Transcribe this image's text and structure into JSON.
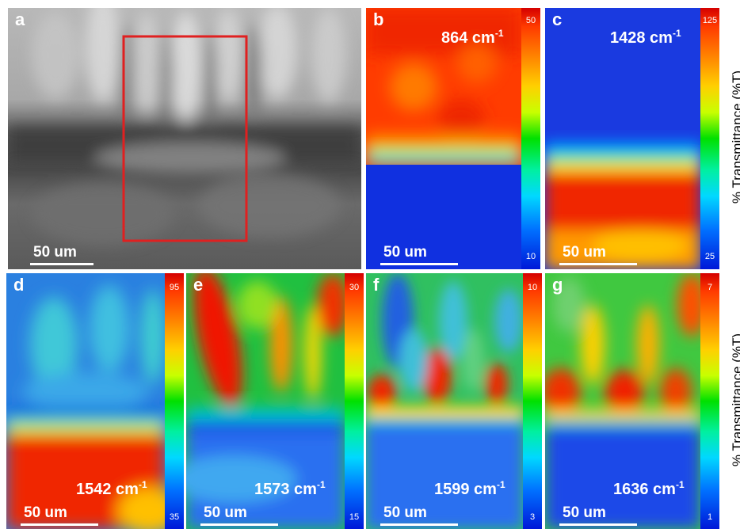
{
  "figure": {
    "panels": [
      {
        "id": "a",
        "letter": "a",
        "type": "optical",
        "scalebar": "50 um"
      },
      {
        "id": "b",
        "letter": "b",
        "wavenumber": "864 cm",
        "unit_exp": "-1",
        "scalebar": "50 um",
        "cbar_max": "50",
        "cbar_min": "10"
      },
      {
        "id": "c",
        "letter": "c",
        "wavenumber": "1428 cm",
        "unit_exp": "-1",
        "scalebar": "50 um",
        "cbar_max": "125",
        "cbar_min": "25"
      },
      {
        "id": "d",
        "letter": "d",
        "wavenumber": "1542 cm",
        "unit_exp": "-1",
        "scalebar": "50 um",
        "cbar_max": "95",
        "cbar_min": "35"
      },
      {
        "id": "e",
        "letter": "e",
        "wavenumber": "1573 cm",
        "unit_exp": "-1",
        "scalebar": "50 um",
        "cbar_max": "30",
        "cbar_min": "15"
      },
      {
        "id": "f",
        "letter": "f",
        "wavenumber": "1599 cm",
        "unit_exp": "-1",
        "scalebar": "50 um",
        "cbar_max": "10",
        "cbar_min": "3"
      },
      {
        "id": "g",
        "letter": "g",
        "wavenumber": "1636 cm",
        "unit_exp": "-1",
        "scalebar": "50 um",
        "cbar_max": "7",
        "cbar_min": "1"
      }
    ],
    "axis_title_top": "% Transmittance (%T)",
    "axis_title_bottom": "% Transmittance (%T)"
  },
  "colors": {
    "roi_box": "#e02020",
    "scalebar": "#ffffff",
    "label_text": "#ffffff"
  }
}
